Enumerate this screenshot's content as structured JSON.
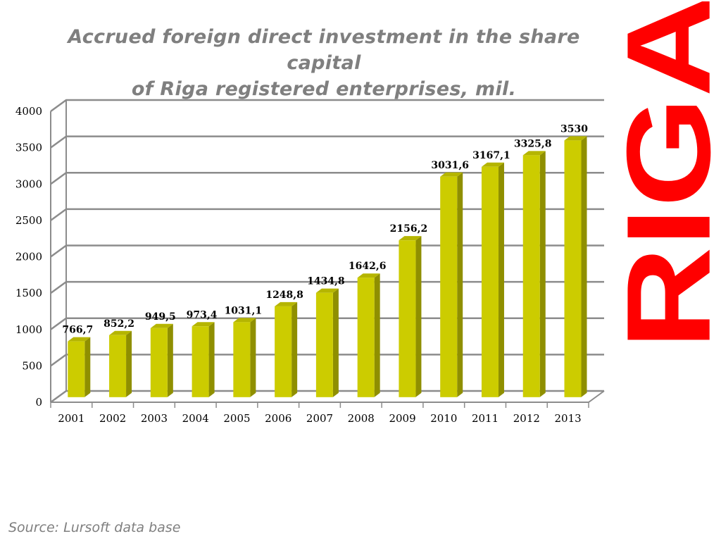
{
  "title": {
    "line1": "Accrued foreign direct investment in the share capital",
    "line2": "of Riga registered enterprises, mil."
  },
  "brand": {
    "text": "RIGA",
    "color": "#ff0000"
  },
  "source": "Source: Lursoft data base",
  "colors": {
    "bar_front": "#cccc00",
    "bar_side": "#8f8f00",
    "bar_top": "#b5b500",
    "grid": "#8c8c8c"
  },
  "chart_data": {
    "type": "bar",
    "categories": [
      "2001",
      "2002",
      "2003",
      "2004",
      "2005",
      "2006",
      "2007",
      "2008",
      "2009",
      "2010",
      "2011",
      "2012",
      "2013"
    ],
    "values": [
      766.7,
      852.2,
      949.5,
      973.4,
      1031.1,
      1248.8,
      1434.8,
      1642.6,
      2156.2,
      3031.6,
      3167.1,
      3325.8,
      3530
    ],
    "data_labels": [
      "766,7",
      "852,2",
      "949,5",
      "973,4",
      "1031,1",
      "1248,8",
      "1434,8",
      "1642,6",
      "2156,2",
      "3031,6",
      "3167,1",
      "3325,8",
      "3530"
    ],
    "yticks": [
      0,
      500,
      1000,
      1500,
      2000,
      2500,
      3000,
      3500,
      4000
    ],
    "ylim": [
      0,
      4000
    ],
    "grid": true,
    "style": "3d"
  }
}
